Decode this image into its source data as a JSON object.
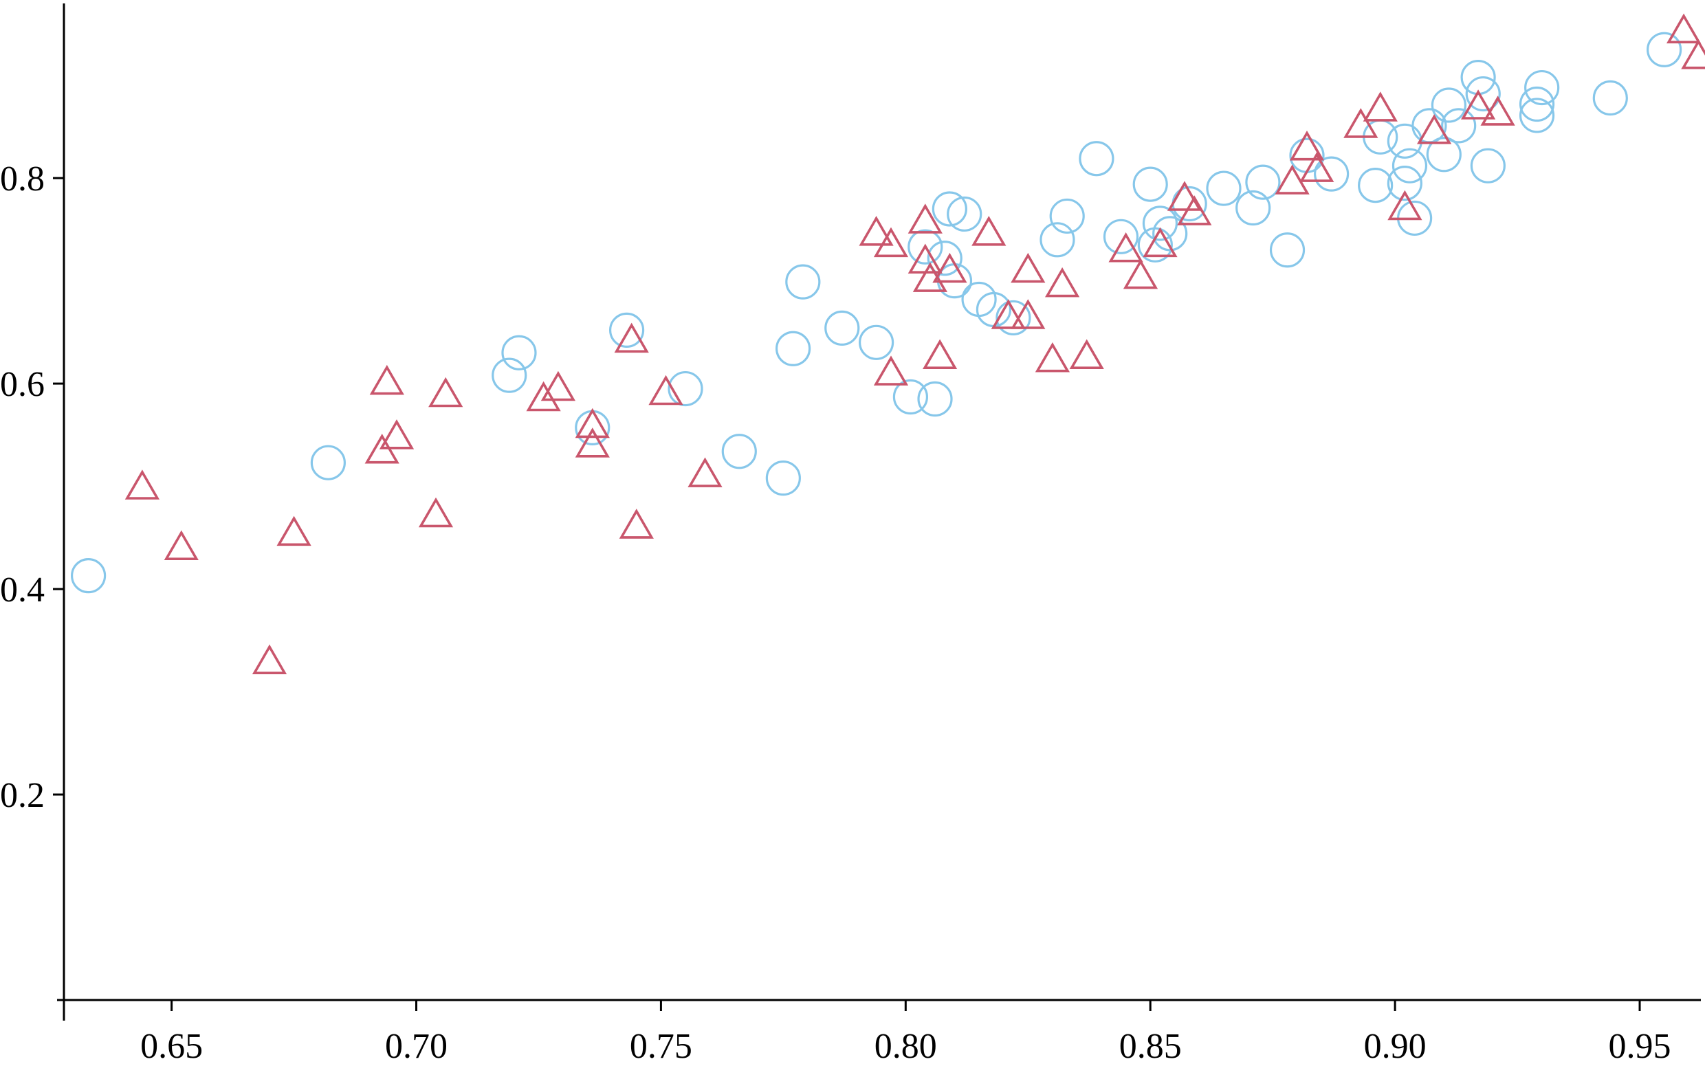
{
  "chart_data": {
    "type": "scatter",
    "title": "",
    "xlabel": "",
    "ylabel": "",
    "xlim": [
      0.628,
      0.9625
    ],
    "ylim": [
      0.0,
      0.97
    ],
    "x_ticks": [
      0.65,
      0.7,
      0.75,
      0.8,
      0.85,
      0.9,
      0.95
    ],
    "x_tick_labels": [
      "0.65",
      "0.70",
      "0.75",
      "0.80",
      "0.85",
      "0.90",
      "0.95"
    ],
    "y_ticks": [
      0.2,
      0.4,
      0.6,
      0.8
    ],
    "y_tick_labels": [
      "0.2",
      "0.4",
      "0.6",
      "0.8"
    ],
    "grid": false,
    "legend": "none",
    "series": [
      {
        "marker": "circle",
        "color": "#87c7ea",
        "points": [
          [
            0.633,
            0.413
          ],
          [
            0.682,
            0.523
          ],
          [
            0.719,
            0.608
          ],
          [
            0.721,
            0.63
          ],
          [
            0.736,
            0.557
          ],
          [
            0.743,
            0.652
          ],
          [
            0.755,
            0.595
          ],
          [
            0.766,
            0.534
          ],
          [
            0.775,
            0.508
          ],
          [
            0.777,
            0.634
          ],
          [
            0.779,
            0.699
          ],
          [
            0.787,
            0.654
          ],
          [
            0.794,
            0.64
          ],
          [
            0.801,
            0.587
          ],
          [
            0.806,
            0.585
          ],
          [
            0.804,
            0.733
          ],
          [
            0.808,
            0.722
          ],
          [
            0.809,
            0.77
          ],
          [
            0.81,
            0.7
          ],
          [
            0.812,
            0.765
          ],
          [
            0.815,
            0.682
          ],
          [
            0.818,
            0.672
          ],
          [
            0.822,
            0.664
          ],
          [
            0.831,
            0.74
          ],
          [
            0.833,
            0.763
          ],
          [
            0.839,
            0.819
          ],
          [
            0.844,
            0.743
          ],
          [
            0.85,
            0.794
          ],
          [
            0.851,
            0.735
          ],
          [
            0.852,
            0.756
          ],
          [
            0.854,
            0.746
          ],
          [
            0.858,
            0.775
          ],
          [
            0.865,
            0.79
          ],
          [
            0.871,
            0.771
          ],
          [
            0.873,
            0.796
          ],
          [
            0.878,
            0.73
          ],
          [
            0.882,
            0.822
          ],
          [
            0.887,
            0.804
          ],
          [
            0.896,
            0.793
          ],
          [
            0.897,
            0.84
          ],
          [
            0.902,
            0.795
          ],
          [
            0.902,
            0.836
          ],
          [
            0.903,
            0.812
          ],
          [
            0.904,
            0.761
          ],
          [
            0.907,
            0.851
          ],
          [
            0.91,
            0.823
          ],
          [
            0.911,
            0.871
          ],
          [
            0.913,
            0.851
          ],
          [
            0.917,
            0.898
          ],
          [
            0.918,
            0.882
          ],
          [
            0.919,
            0.812
          ],
          [
            0.929,
            0.861
          ],
          [
            0.929,
            0.872
          ],
          [
            0.93,
            0.888
          ],
          [
            0.944,
            0.878
          ],
          [
            0.955,
            0.925
          ]
        ]
      },
      {
        "marker": "triangle",
        "color": "#c9566c",
        "points": [
          [
            0.644,
            0.498
          ],
          [
            0.652,
            0.439
          ],
          [
            0.67,
            0.328
          ],
          [
            0.675,
            0.453
          ],
          [
            0.693,
            0.533
          ],
          [
            0.694,
            0.6
          ],
          [
            0.696,
            0.547
          ],
          [
            0.704,
            0.471
          ],
          [
            0.706,
            0.588
          ],
          [
            0.726,
            0.584
          ],
          [
            0.729,
            0.594
          ],
          [
            0.736,
            0.558
          ],
          [
            0.736,
            0.539
          ],
          [
            0.744,
            0.641
          ],
          [
            0.745,
            0.46
          ],
          [
            0.751,
            0.59
          ],
          [
            0.759,
            0.51
          ],
          [
            0.794,
            0.745
          ],
          [
            0.797,
            0.734
          ],
          [
            0.797,
            0.609
          ],
          [
            0.804,
            0.757
          ],
          [
            0.804,
            0.718
          ],
          [
            0.805,
            0.7
          ],
          [
            0.807,
            0.625
          ],
          [
            0.809,
            0.709
          ],
          [
            0.817,
            0.745
          ],
          [
            0.821,
            0.664
          ],
          [
            0.825,
            0.709
          ],
          [
            0.825,
            0.664
          ],
          [
            0.83,
            0.622
          ],
          [
            0.832,
            0.695
          ],
          [
            0.837,
            0.625
          ],
          [
            0.845,
            0.729
          ],
          [
            0.848,
            0.703
          ],
          [
            0.852,
            0.734
          ],
          [
            0.857,
            0.779
          ],
          [
            0.859,
            0.765
          ],
          [
            0.879,
            0.795
          ],
          [
            0.882,
            0.828
          ],
          [
            0.884,
            0.807
          ],
          [
            0.893,
            0.85
          ],
          [
            0.897,
            0.866
          ],
          [
            0.902,
            0.77
          ],
          [
            0.908,
            0.844
          ],
          [
            0.917,
            0.868
          ],
          [
            0.921,
            0.862
          ],
          [
            0.959,
            0.942
          ],
          [
            0.962,
            0.917
          ]
        ]
      }
    ]
  }
}
